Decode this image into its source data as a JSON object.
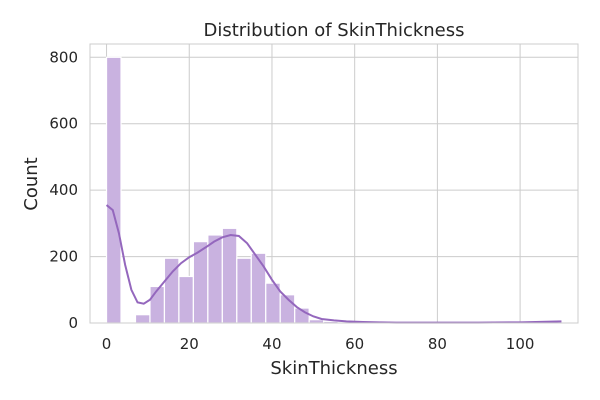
{
  "chart_data": {
    "type": "bar",
    "title": "Distribution of SkinThickness",
    "xlabel": "SkinThickness",
    "ylabel": "Count",
    "xlim": [
      -4,
      114
    ],
    "ylim": [
      0,
      840
    ],
    "xticks": [
      0,
      20,
      40,
      60,
      80,
      100
    ],
    "yticks": [
      0,
      200,
      400,
      600,
      800
    ],
    "grid": true,
    "bar_color": "#c9b2e0",
    "kde_color": "#9467bd",
    "bin_width": 3.5,
    "bins": [
      {
        "x0": 0,
        "count": 800
      },
      {
        "x0": 3.5,
        "count": 0
      },
      {
        "x0": 7,
        "count": 25
      },
      {
        "x0": 10.5,
        "count": 110
      },
      {
        "x0": 14,
        "count": 195
      },
      {
        "x0": 17.5,
        "count": 140
      },
      {
        "x0": 21,
        "count": 245
      },
      {
        "x0": 24.5,
        "count": 265
      },
      {
        "x0": 28,
        "count": 285
      },
      {
        "x0": 31.5,
        "count": 195
      },
      {
        "x0": 35,
        "count": 210
      },
      {
        "x0": 38.5,
        "count": 120
      },
      {
        "x0": 42,
        "count": 85
      },
      {
        "x0": 45.5,
        "count": 45
      },
      {
        "x0": 49,
        "count": 10
      },
      {
        "x0": 52.5,
        "count": 5
      },
      {
        "x0": 56,
        "count": 2
      },
      {
        "x0": 59.5,
        "count": 2
      },
      {
        "x0": 63,
        "count": 1
      },
      {
        "x0": 98,
        "count": 1
      }
    ],
    "kde": {
      "x": [
        0,
        1.5,
        3,
        4.5,
        6,
        7.5,
        9,
        10.5,
        12,
        14,
        16,
        18,
        20,
        22,
        24,
        26,
        28,
        30,
        32,
        34,
        36,
        38,
        40,
        42,
        44,
        46,
        48,
        50,
        52,
        55,
        58,
        62,
        66,
        70,
        75,
        80,
        90,
        100,
        110
      ],
      "y": [
        355,
        340,
        270,
        175,
        100,
        62,
        58,
        70,
        95,
        125,
        155,
        180,
        198,
        212,
        228,
        245,
        258,
        265,
        262,
        240,
        205,
        170,
        130,
        95,
        70,
        48,
        32,
        20,
        12,
        8,
        5,
        3,
        2,
        1,
        1,
        1,
        1,
        2,
        5
      ]
    }
  }
}
